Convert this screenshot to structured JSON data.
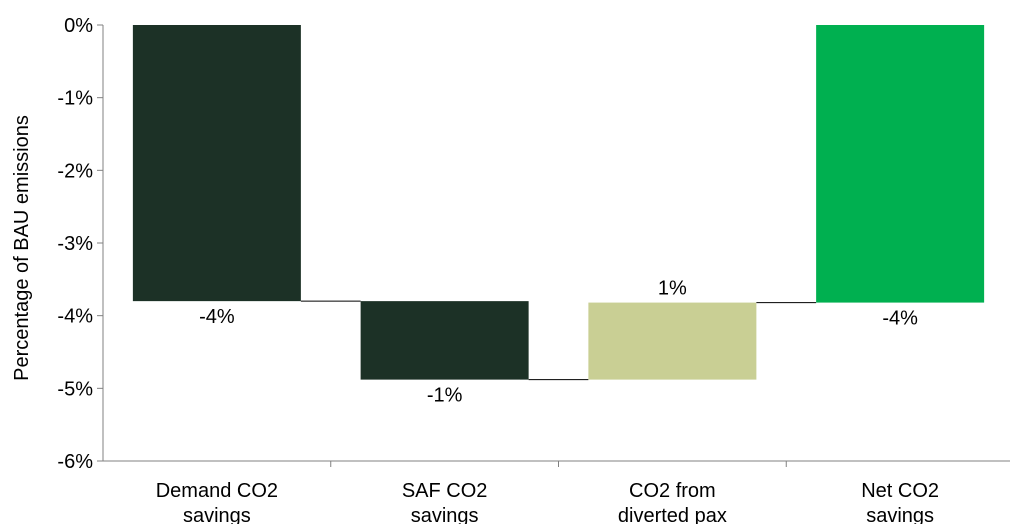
{
  "chart_data": {
    "type": "waterfall",
    "categories": [
      [
        "Demand CO2",
        "savings"
      ],
      [
        "SAF CO2",
        "savings"
      ],
      [
        "CO2 from",
        "diverted pax"
      ],
      [
        "Net CO2",
        "savings"
      ]
    ],
    "bars": [
      {
        "start": 0,
        "end": -3.8,
        "label": "-4%",
        "color": "#1c3126",
        "label_side": "below"
      },
      {
        "start": -3.8,
        "end": -4.88,
        "label": "-1%",
        "color": "#1c3126",
        "label_side": "below"
      },
      {
        "start": -4.88,
        "end": -3.82,
        "label": "1%",
        "color": "#c9cf94",
        "label_side": "above"
      },
      {
        "start": 0,
        "end": -3.82,
        "label": "-4%",
        "color": "#00b050",
        "label_side": "below"
      }
    ],
    "ylabel": "Percentage of BAU emissions",
    "ylim": [
      -6,
      0
    ],
    "yticks": [
      0,
      -1,
      -2,
      -3,
      -4,
      -5,
      -6
    ],
    "ytick_labels": [
      "0%",
      "-1%",
      "-2%",
      "-3%",
      "-4%",
      "-5%",
      "-6%"
    ],
    "grid": false,
    "legend": false
  }
}
